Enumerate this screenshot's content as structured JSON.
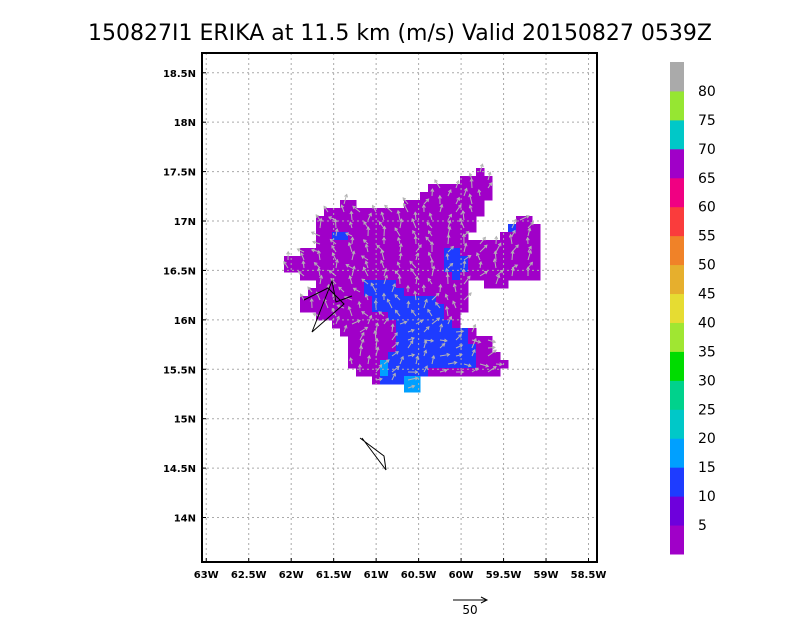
{
  "chart_data": {
    "type": "heatmap",
    "title": "150827I1 ERIKA at 11.5 km (m/s) Valid 20150827 0539Z",
    "x_ticks": [
      "63W",
      "62.5W",
      "62W",
      "61.5W",
      "61W",
      "60.5W",
      "60W",
      "59.5W",
      "59W",
      "58.5W"
    ],
    "y_ticks": [
      "18.5N",
      "18N",
      "17.5N",
      "17N",
      "16.5N",
      "16N",
      "15.5N",
      "15N",
      "14.5N",
      "14N"
    ],
    "xlim": [
      63.05,
      58.4
    ],
    "ylim": [
      13.55,
      18.7
    ],
    "grid": true,
    "colorbar": {
      "labels": [
        "5",
        "10",
        "15",
        "20",
        "25",
        "30",
        "35",
        "40",
        "45",
        "50",
        "55",
        "60",
        "65",
        "70",
        "75",
        "80"
      ],
      "colors": [
        "#a000c8",
        "#6e00dc",
        "#1e3cff",
        "#00a0ff",
        "#00c8c8",
        "#00d28c",
        "#00dc00",
        "#a0e632",
        "#e6dc32",
        "#e6af2d",
        "#f08228",
        "#fa3c3c",
        "#f00082",
        "#a000c8",
        "#00c8c8",
        "#96e632",
        "#aaaaaa"
      ]
    },
    "wind_vector_reference": "50",
    "colors": {
      "purple": "#a000c8",
      "blue": "#1e3cff",
      "cyan": "#00a0ff",
      "arrow": "#b4b4b4"
    }
  }
}
